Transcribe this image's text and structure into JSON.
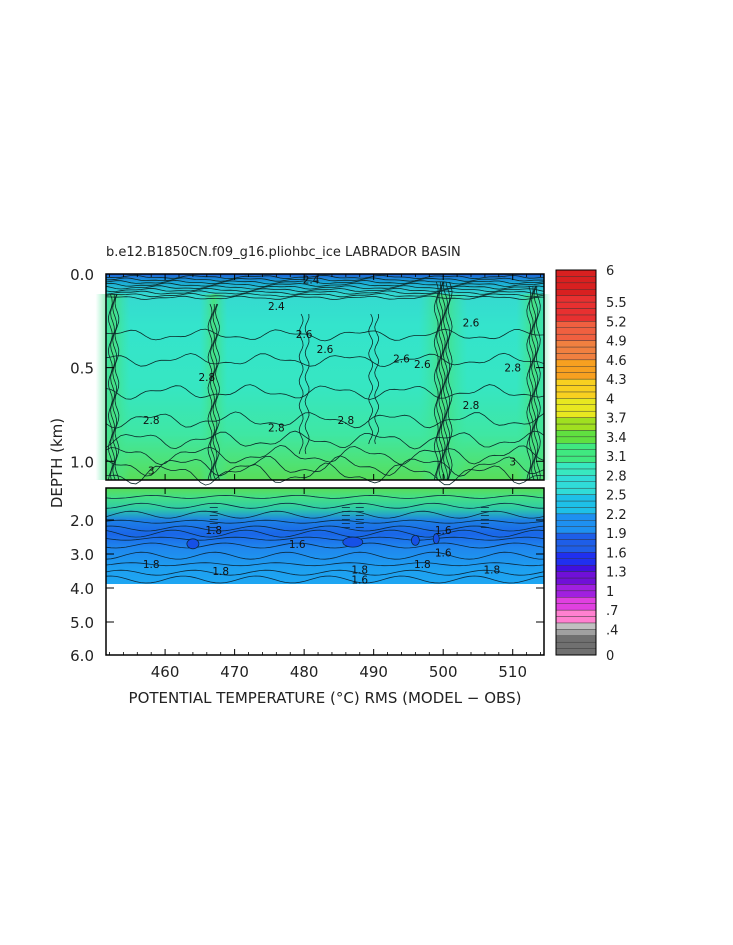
{
  "chart_data": {
    "type": "heatmap",
    "title": "b.e12.B1850CN.f09_g16.pliohbc_ice LABRADOR BASIN",
    "xlabel": "POTENTIAL TEMPERATURE (°C) RMS (MODEL − OBS)",
    "ylabel": "DEPTH (km)",
    "xlim": [
      451.5,
      514.5
    ],
    "x_ticks": [
      "460",
      "470",
      "480",
      "490",
      "500",
      "510"
    ],
    "x_tick_values": [
      460,
      470,
      480,
      490,
      500,
      510
    ],
    "upper_panel": {
      "ylim": [
        0.0,
        1.1
      ],
      "y_ticks": [
        "0.0",
        "0.5",
        "1.0"
      ],
      "y_tick_values": [
        0.0,
        0.5,
        1.0
      ]
    },
    "lower_panel": {
      "ylim": [
        1.1,
        6.0
      ],
      "y_ticks": [
        "2.0",
        "3.0",
        "4.0",
        "5.0",
        "6.0"
      ],
      "y_tick_values": [
        2.0,
        3.0,
        4.0,
        5.0,
        6.0
      ],
      "data_bottom_depth": 3.9
    },
    "colorbar": {
      "range": [
        0,
        6
      ],
      "labels": [
        "6",
        "5.5",
        "5.2",
        "4.9",
        "4.6",
        "4.3",
        "4",
        "3.7",
        "3.4",
        "3.1",
        "2.8",
        "2.5",
        "2.2",
        "1.9",
        "1.6",
        "1.3",
        "1",
        ".7",
        ".4",
        "0"
      ],
      "label_values": [
        6,
        5.5,
        5.2,
        4.9,
        4.6,
        4.3,
        4.0,
        3.7,
        3.4,
        3.1,
        2.8,
        2.5,
        2.2,
        1.9,
        1.6,
        1.3,
        1.0,
        0.7,
        0.4,
        0
      ]
    },
    "contour_labels_upper": [
      {
        "text": "2.4",
        "x": 481,
        "y": 0.03
      },
      {
        "text": "2.4",
        "x": 476,
        "y": 0.17
      },
      {
        "text": "2.6",
        "x": 480,
        "y": 0.32
      },
      {
        "text": "2.6",
        "x": 483,
        "y": 0.4
      },
      {
        "text": "2.6",
        "x": 494,
        "y": 0.45
      },
      {
        "text": "2.6",
        "x": 504,
        "y": 0.26
      },
      {
        "text": "2.6",
        "x": 497,
        "y": 0.48
      },
      {
        "text": "2.8",
        "x": 466,
        "y": 0.55
      },
      {
        "text": "2.8",
        "x": 504,
        "y": 0.7
      },
      {
        "text": "2.8",
        "x": 476,
        "y": 0.82
      },
      {
        "text": "2.8",
        "x": 486,
        "y": 0.78
      },
      {
        "text": "2.8",
        "x": 458,
        "y": 0.78
      },
      {
        "text": "2.8",
        "x": 510,
        "y": 0.5
      },
      {
        "text": "3",
        "x": 458,
        "y": 1.05
      },
      {
        "text": "3",
        "x": 510,
        "y": 1.0
      }
    ],
    "contour_labels_lower": [
      {
        "text": "1.8",
        "x": 458,
        "y": 3.3
      },
      {
        "text": "1.8",
        "x": 468,
        "y": 3.5
      },
      {
        "text": "1.6",
        "x": 479,
        "y": 2.7
      },
      {
        "text": "1.8",
        "x": 488,
        "y": 3.45
      },
      {
        "text": "1.6",
        "x": 488,
        "y": 3.75
      },
      {
        "text": "1.8",
        "x": 497,
        "y": 3.3
      },
      {
        "text": "1.6",
        "x": 500,
        "y": 2.95
      },
      {
        "text": "1.8",
        "x": 507,
        "y": 3.45
      },
      {
        "text": "1.8",
        "x": 467,
        "y": 2.3
      },
      {
        "text": "1.6",
        "x": 500,
        "y": 2.3
      }
    ]
  }
}
